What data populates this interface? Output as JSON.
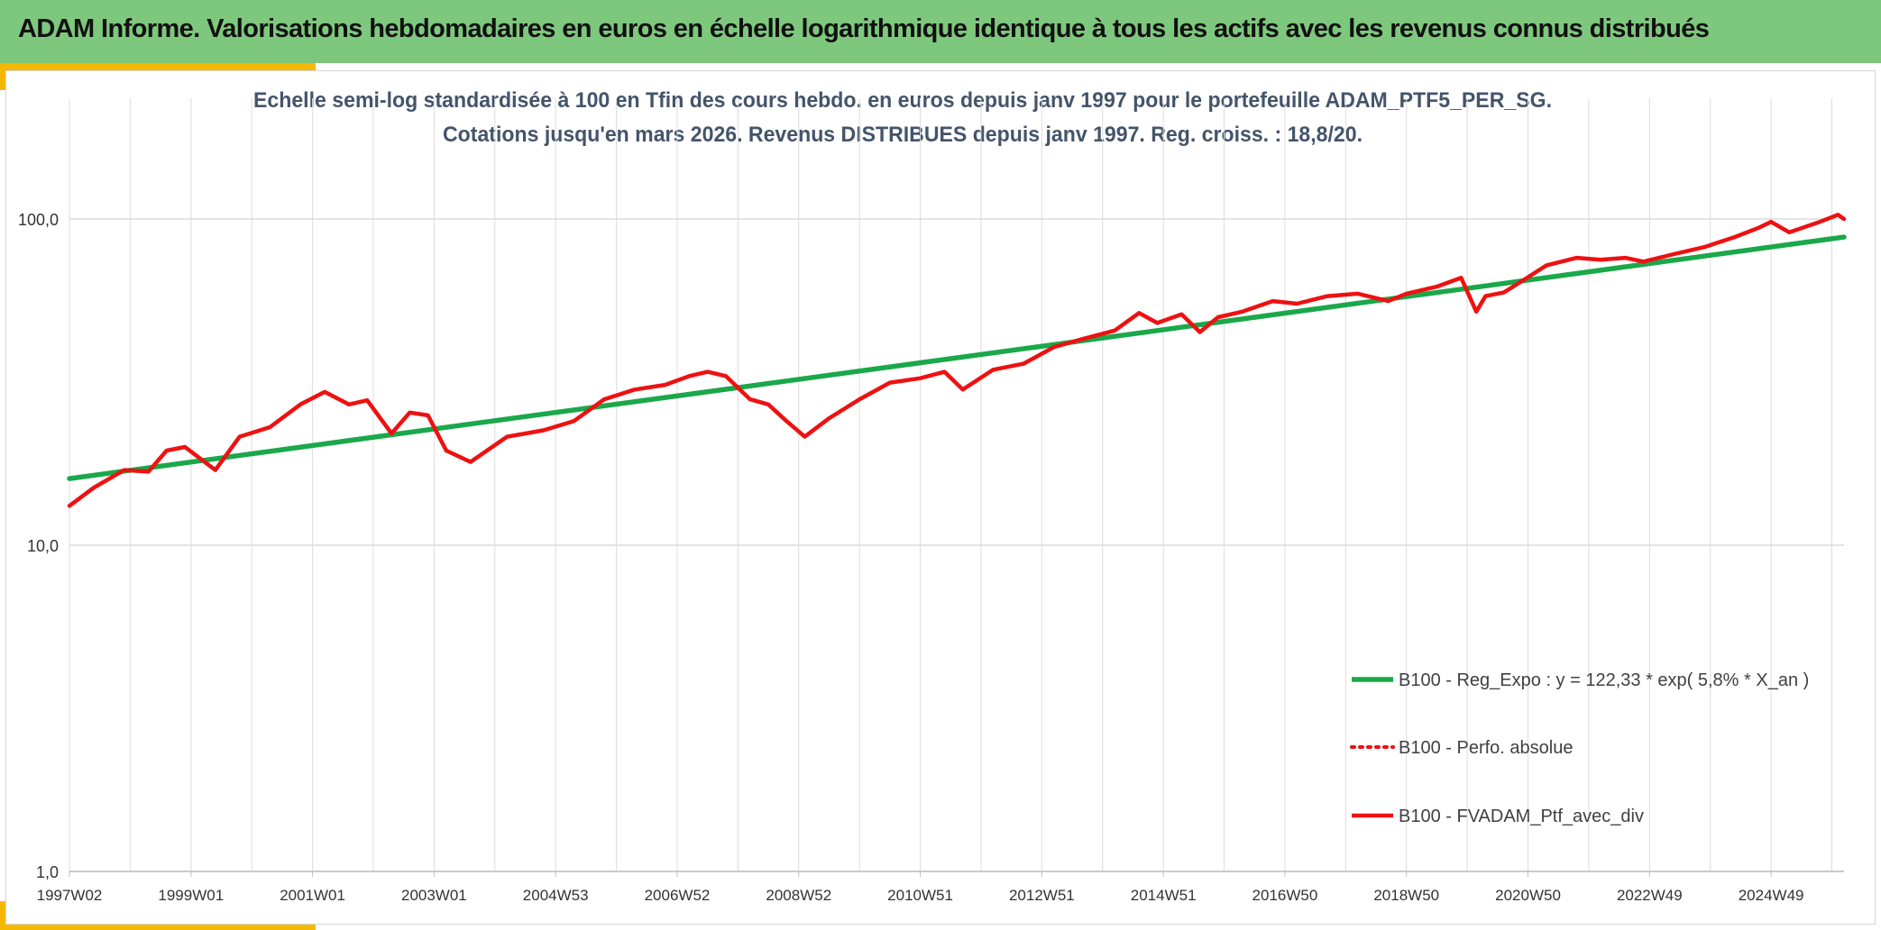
{
  "header": {
    "title": "ADAM Informe. Valorisations hebdomadaires en euros en échelle logarithmique identique à tous les actifs avec les revenus connus distribués"
  },
  "colors": {
    "banner": "#7ec87e",
    "accent_bar": "#f5b800",
    "regression_line": "#1aa84a",
    "portfolio_line": "#ee1111",
    "gridline": "#dcdcdc"
  },
  "chart_data": {
    "type": "line",
    "title": "Echelle semi-log standardisée à 100 en Tfin des cours hebdo. en euros depuis janv 1997 pour le portefeuille ADAM_PTF5_PER_SG.",
    "subtitle": "Cotations jusqu'en mars 2026. Revenus DISTRIBUES depuis janv 1997. Reg. croiss. : 18,8/20.",
    "xlabel": "",
    "ylabel": "",
    "y_scale": "log",
    "ylim": [
      1,
      200
    ],
    "x_range": [
      1997.0,
      2026.2
    ],
    "grid": true,
    "legend_position": "bottom-right",
    "x_tick_labels": [
      "1997W02",
      "1999W01",
      "2001W01",
      "2003W01",
      "2004W53",
      "2006W52",
      "2008W52",
      "2010W51",
      "2012W51",
      "2014W51",
      "2016W50",
      "2018W50",
      "2020W50",
      "2022W49",
      "2024W49"
    ],
    "x_tick_values": [
      1997.0,
      1999.0,
      2001.0,
      2003.0,
      2005.0,
      2007.0,
      2009.0,
      2011.0,
      2013.0,
      2015.0,
      2017.0,
      2019.0,
      2021.0,
      2023.0,
      2025.0
    ],
    "y_tick_labels": [
      "1,0",
      "10,0",
      "100,0"
    ],
    "y_tick_values": [
      1,
      10,
      100
    ],
    "series": [
      {
        "name": "B100 - Reg_Expo : y = 122,33 * exp( 5,8% *  X_an )",
        "style": "solid-thick",
        "color": "#1aa84a",
        "x": [
          1997.0,
          2026.2
        ],
        "y": [
          16.0,
          88.0
        ]
      },
      {
        "name": "B100 - Perfo. absolue",
        "style": "dotted",
        "color": "#ee1111",
        "x": [],
        "y": []
      },
      {
        "name": "B100 - FVADAM_Ptf_avec_div",
        "style": "solid",
        "color": "#ee1111",
        "x": [
          1997.0,
          1997.4,
          1997.9,
          1998.3,
          1998.6,
          1998.9,
          1999.4,
          1999.8,
          2000.3,
          2000.8,
          2001.2,
          2001.6,
          2001.9,
          2002.3,
          2002.6,
          2002.9,
          2003.2,
          2003.6,
          2004.2,
          2004.8,
          2005.3,
          2005.8,
          2006.3,
          2006.8,
          2007.2,
          2007.5,
          2007.8,
          2008.2,
          2008.5,
          2008.8,
          2009.1,
          2009.5,
          2010.0,
          2010.5,
          2011.0,
          2011.4,
          2011.7,
          2012.2,
          2012.7,
          2013.2,
          2013.7,
          2014.2,
          2014.6,
          2014.9,
          2015.3,
          2015.6,
          2015.9,
          2016.3,
          2016.8,
          2017.2,
          2017.7,
          2018.2,
          2018.7,
          2019.0,
          2019.5,
          2019.9,
          2020.15,
          2020.3,
          2020.6,
          2020.9,
          2021.3,
          2021.8,
          2022.2,
          2022.6,
          2022.9,
          2023.4,
          2023.9,
          2024.4,
          2024.8,
          2025.0,
          2025.3,
          2025.8,
          2026.1,
          2026.2
        ],
        "y": [
          13.2,
          15.0,
          17.0,
          16.8,
          19.5,
          20.0,
          17.0,
          21.5,
          23.0,
          27.0,
          29.5,
          27.0,
          27.8,
          22.0,
          25.5,
          25.0,
          19.5,
          18.0,
          21.5,
          22.5,
          24.0,
          28.0,
          30.0,
          31.0,
          33.0,
          34.0,
          33.0,
          28.0,
          27.0,
          24.0,
          21.5,
          24.5,
          28.0,
          31.5,
          32.5,
          34.0,
          30.0,
          34.5,
          36.0,
          40.5,
          43.0,
          45.5,
          51.5,
          48.0,
          51.0,
          45.0,
          50.0,
          52.0,
          56.0,
          55.0,
          58.0,
          59.0,
          56.0,
          59.0,
          62.0,
          66.0,
          52.0,
          58.0,
          59.5,
          64.5,
          72.0,
          76.0,
          75.0,
          76.0,
          74.0,
          78.0,
          82.0,
          88.0,
          94.0,
          98.0,
          91.0,
          98.0,
          103.0,
          100.0
        ]
      }
    ]
  }
}
